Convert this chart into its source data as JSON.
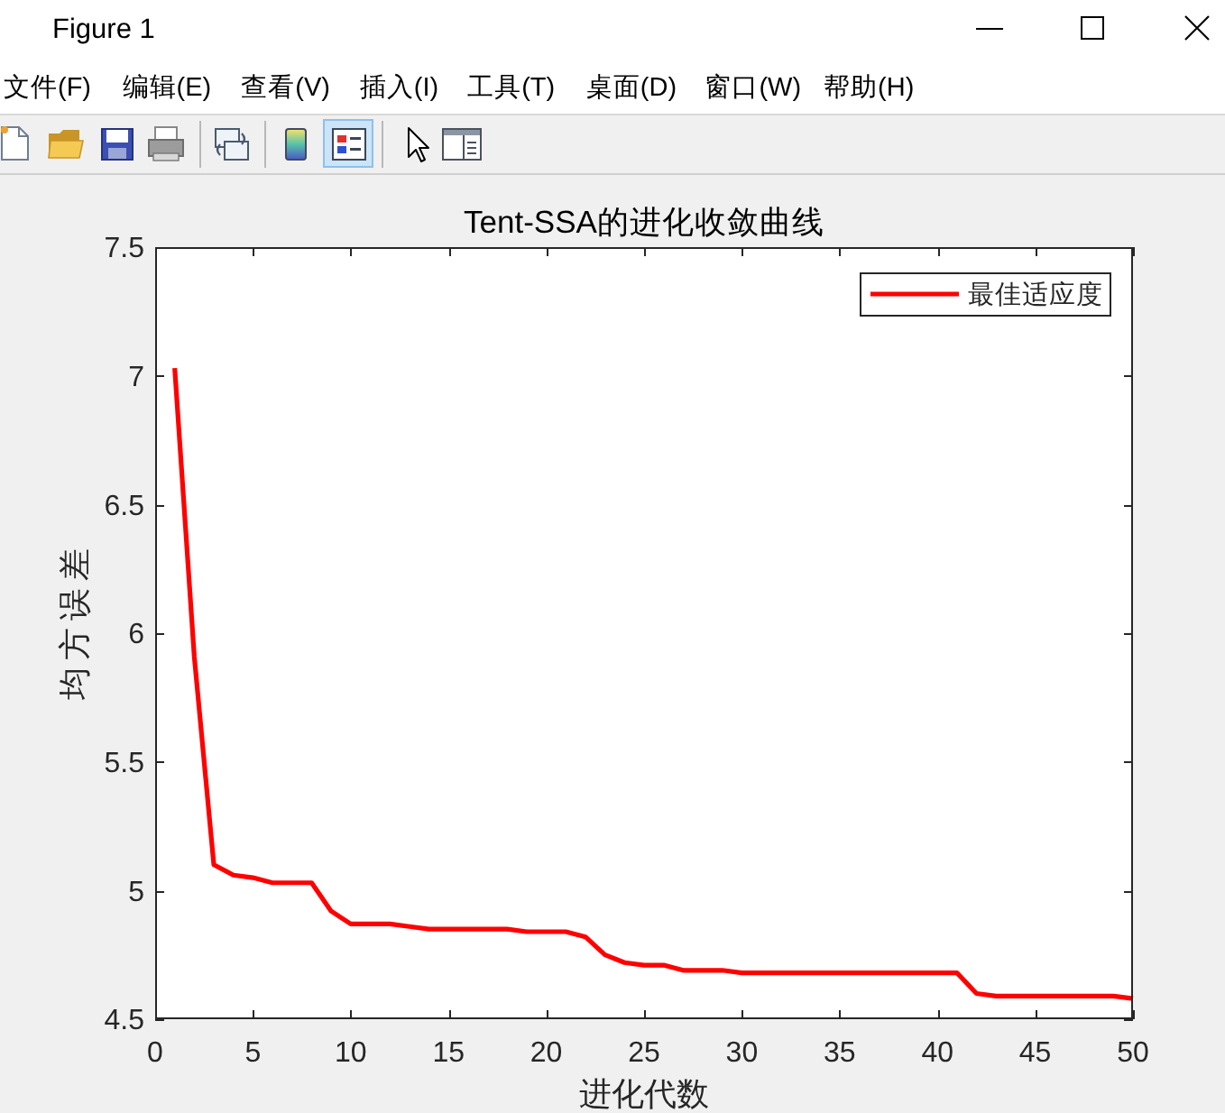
{
  "chart_data": {
    "type": "line",
    "title": "Tent-SSA的进化收敛曲线",
    "xlabel": "进化代数",
    "ylabel": "均方误差",
    "x": [
      1,
      2,
      3,
      4,
      5,
      6,
      7,
      8,
      9,
      10,
      11,
      12,
      13,
      14,
      15,
      16,
      17,
      18,
      19,
      20,
      21,
      22,
      23,
      24,
      25,
      26,
      27,
      28,
      29,
      30,
      31,
      32,
      33,
      34,
      35,
      36,
      37,
      38,
      39,
      40,
      41,
      42,
      43,
      44,
      45,
      46,
      47,
      48,
      49,
      50
    ],
    "series": [
      {
        "name": "最佳适应度",
        "color": "#ff0000",
        "values": [
          7.03,
          5.91,
          5.1,
          5.06,
          5.05,
          5.03,
          5.03,
          5.03,
          4.92,
          4.87,
          4.87,
          4.87,
          4.86,
          4.85,
          4.85,
          4.85,
          4.85,
          4.85,
          4.84,
          4.84,
          4.84,
          4.82,
          4.75,
          4.72,
          4.71,
          4.71,
          4.69,
          4.69,
          4.69,
          4.68,
          4.68,
          4.68,
          4.68,
          4.68,
          4.68,
          4.68,
          4.68,
          4.68,
          4.68,
          4.68,
          4.68,
          4.6,
          4.59,
          4.59,
          4.59,
          4.59,
          4.59,
          4.59,
          4.59,
          4.58
        ]
      }
    ],
    "xlim": [
      0,
      50
    ],
    "ylim": [
      4.5,
      7.5
    ],
    "xticks": [
      0,
      5,
      10,
      15,
      20,
      25,
      30,
      35,
      40,
      45,
      50
    ],
    "yticks": [
      4.5,
      5,
      5.5,
      6,
      6.5,
      7,
      7.5
    ],
    "legend": "top right",
    "line_style": "solid",
    "annotations": [
      "Figure 1",
      "文件(F)",
      "编辑(E)",
      "查看(V)",
      "插入(I)",
      "工具(T)",
      "桌面(D)",
      "窗口(W)",
      "帮助(H)"
    ]
  }
}
